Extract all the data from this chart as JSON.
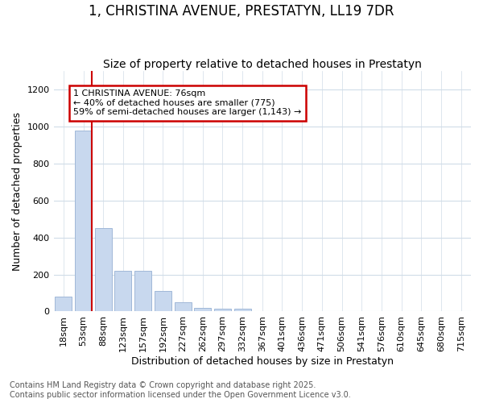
{
  "title_line1": "1, CHRISTINA AVENUE, PRESTATYN, LL19 7DR",
  "title_line2": "Size of property relative to detached houses in Prestatyn",
  "xlabel": "Distribution of detached houses by size in Prestatyn",
  "ylabel": "Number of detached properties",
  "bar_color": "#c8d8ee",
  "bar_edge_color": "#a0b8d8",
  "categories": [
    "18sqm",
    "53sqm",
    "88sqm",
    "123sqm",
    "157sqm",
    "192sqm",
    "227sqm",
    "262sqm",
    "297sqm",
    "332sqm",
    "367sqm",
    "401sqm",
    "436sqm",
    "471sqm",
    "506sqm",
    "541sqm",
    "576sqm",
    "610sqm",
    "645sqm",
    "680sqm",
    "715sqm"
  ],
  "values": [
    80,
    980,
    450,
    220,
    220,
    110,
    50,
    20,
    15,
    15,
    0,
    0,
    0,
    0,
    0,
    0,
    0,
    0,
    0,
    0,
    0
  ],
  "ylim": [
    0,
    1300
  ],
  "yticks": [
    0,
    200,
    400,
    600,
    800,
    1000,
    1200
  ],
  "vline_x_index": 1,
  "vline_color": "#cc0000",
  "annotation_text": "1 CHRISTINA AVENUE: 76sqm\n← 40% of detached houses are smaller (775)\n59% of semi-detached houses are larger (1,143) →",
  "annotation_box_facecolor": "#ffffff",
  "annotation_border_color": "#cc0000",
  "footer_line1": "Contains HM Land Registry data © Crown copyright and database right 2025.",
  "footer_line2": "Contains public sector information licensed under the Open Government Licence v3.0.",
  "plot_background": "#ffffff",
  "fig_background": "#ffffff",
  "grid_color": "#d0dce8",
  "title_fontsize": 12,
  "subtitle_fontsize": 10,
  "axis_label_fontsize": 9,
  "tick_fontsize": 8,
  "annotation_fontsize": 8,
  "footer_fontsize": 7,
  "bar_width": 0.85
}
